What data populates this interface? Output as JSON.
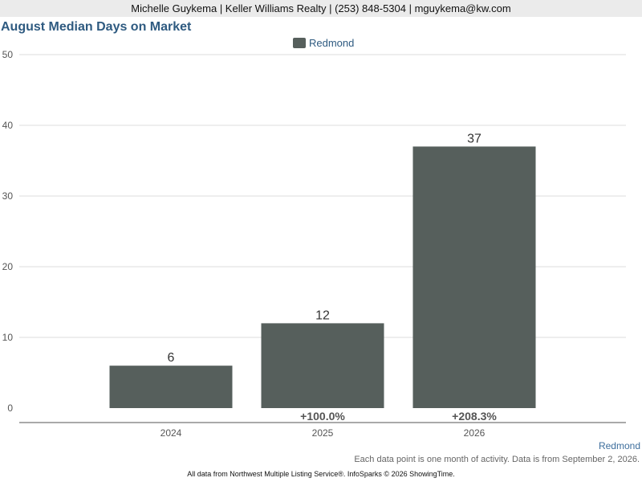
{
  "header": {
    "contact": "Michelle Guykema | Keller Williams Realty | (253) 848-5304 | mguykema@kw.com"
  },
  "chart_title": "August Median Days on Market",
  "legend": {
    "label": "Redmond",
    "color": "#565f5c"
  },
  "region_link": "Redmond",
  "footnote": "Each data point is one month of activity. Data is from September 2, 2026.",
  "credit": "All data from Northwest Multiple Listing Service®. InfoSparks © 2026 ShowingTime.",
  "chart_data": {
    "type": "bar",
    "title": "August Median Days on Market",
    "categories": [
      "2024",
      "2025",
      "2026"
    ],
    "series": [
      {
        "name": "Redmond",
        "values": [
          6,
          12,
          37
        ],
        "color": "#565f5c"
      }
    ],
    "data_labels": [
      "6",
      "12",
      "37"
    ],
    "change_labels": [
      "",
      "+100.0%",
      "+208.3%"
    ],
    "yticks": [
      0,
      10,
      20,
      30,
      40,
      50
    ],
    "ylim": [
      0,
      50
    ],
    "grid": true,
    "legend_position": "top-center",
    "xlabel": "",
    "ylabel": ""
  }
}
